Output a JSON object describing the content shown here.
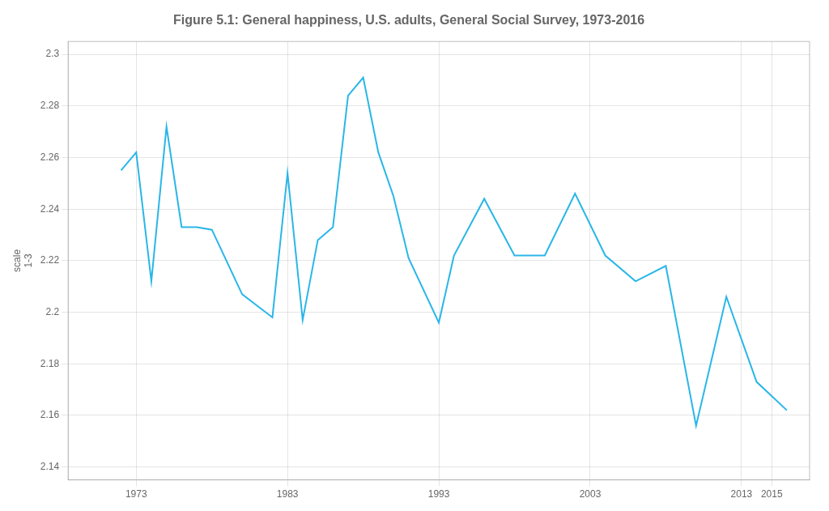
{
  "chart_data": {
    "type": "line",
    "title": "Figure 5.1: General happiness, U.S. adults, General Social Survey, 1973-2016",
    "y_label": "scale\n1-3",
    "x": [
      1972,
      1973,
      1974,
      1975,
      1976,
      1977,
      1978,
      1980,
      1982,
      1983,
      1984,
      1985,
      1986,
      1987,
      1988,
      1989,
      1990,
      1991,
      1993,
      1994,
      1996,
      1998,
      2000,
      2002,
      2004,
      2006,
      2008,
      2010,
      2012,
      2014,
      2016
    ],
    "values": [
      2.255,
      2.262,
      2.212,
      2.272,
      2.233,
      2.233,
      2.232,
      2.207,
      2.198,
      2.254,
      2.197,
      2.228,
      2.233,
      2.284,
      2.291,
      2.262,
      2.245,
      2.221,
      2.196,
      2.222,
      2.244,
      2.222,
      2.222,
      2.246,
      2.222,
      2.212,
      2.218,
      2.156,
      2.206,
      2.173,
      2.162
    ],
    "color": "#29b6e8",
    "xlim": [
      1968.5,
      2017.5
    ],
    "ylim": [
      2.135,
      2.305
    ],
    "xticks": [
      1973,
      1983,
      1993,
      2003,
      2013,
      2015
    ],
    "yticks": [
      2.14,
      2.16,
      2.18,
      2.2,
      2.22,
      2.24,
      2.26,
      2.28,
      2.3
    ],
    "grid": true
  }
}
